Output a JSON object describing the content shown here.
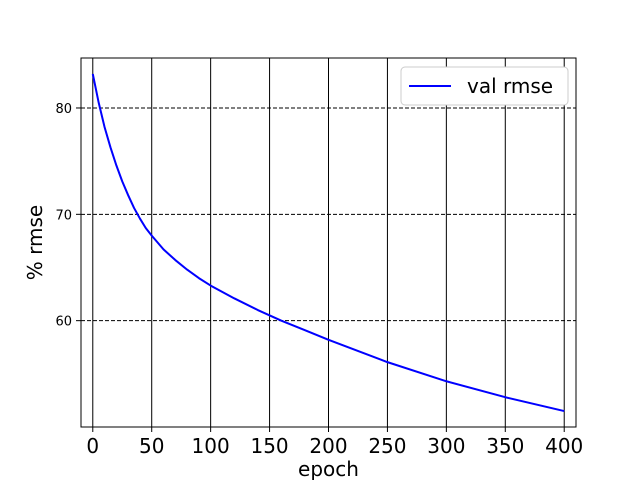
{
  "chart_data": {
    "type": "line",
    "title": "",
    "xlabel": "epoch",
    "ylabel": "% rmse",
    "xlim": [
      -10,
      410
    ],
    "ylim": [
      50,
      84.7
    ],
    "x_ticks": [
      0,
      50,
      100,
      150,
      200,
      250,
      300,
      350,
      400
    ],
    "y_ticks": [
      60,
      70,
      80
    ],
    "x_grid": "solid",
    "y_grid": "dashed",
    "legend": "top-right",
    "series": [
      {
        "name": "val rmse",
        "color": "#0000ff",
        "x": [
          0,
          5,
          10,
          15,
          20,
          25,
          30,
          35,
          40,
          45,
          50,
          60,
          70,
          80,
          90,
          100,
          120,
          140,
          160,
          180,
          200,
          250,
          300,
          350,
          400
        ],
        "y": [
          83.2,
          80.5,
          78.2,
          76.3,
          74.6,
          73.1,
          71.8,
          70.6,
          69.6,
          68.7,
          68.0,
          66.7,
          65.7,
          64.8,
          64.0,
          63.3,
          62.1,
          61.0,
          60.0,
          59.1,
          58.2,
          56.1,
          54.3,
          52.8,
          51.5
        ]
      }
    ]
  }
}
